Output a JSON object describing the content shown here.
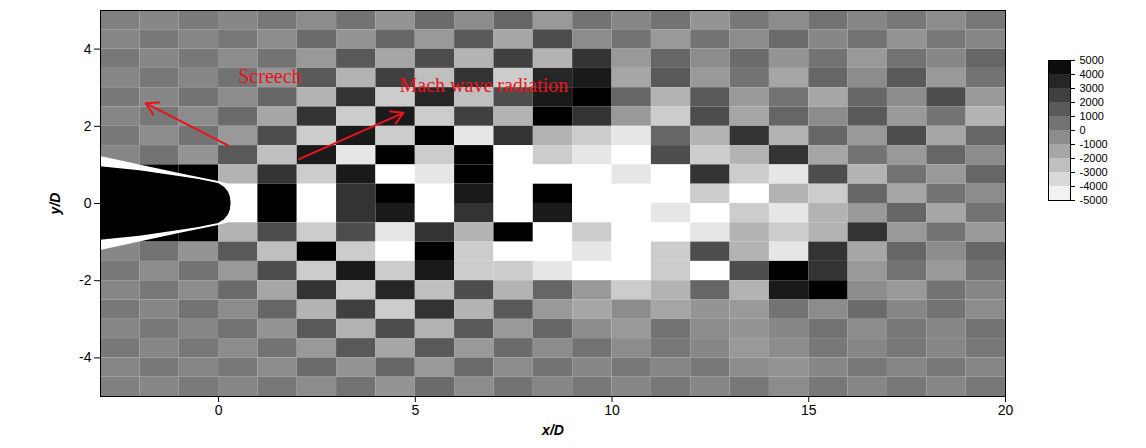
{
  "chart_data": {
    "type": "heatmap",
    "xlabel": "x/D",
    "ylabel": "y/D",
    "xlim": [
      -3,
      20
    ],
    "ylim": [
      -5,
      5
    ],
    "xticks": [
      0,
      5,
      10,
      15,
      20
    ],
    "yticks": [
      -4,
      -2,
      0,
      2,
      4
    ],
    "x": [
      -2.5,
      -1.5,
      -0.5,
      0.5,
      1.5,
      2.5,
      3.5,
      4.5,
      5.5,
      6.5,
      7.5,
      8.5,
      9.5,
      10.5,
      11.5,
      12.5,
      13.5,
      14.5,
      15.5,
      16.5,
      17.5,
      18.5,
      19.5
    ],
    "y": [
      4.75,
      4.25,
      3.75,
      3.25,
      2.75,
      2.25,
      1.75,
      1.25,
      0.75,
      0.25,
      -0.25,
      -0.75,
      -1.25,
      -1.75,
      -2.25,
      -2.75,
      -3.25,
      -3.75,
      -4.25,
      -4.75
    ],
    "z": [
      [
        0,
        -300,
        200,
        -300,
        300,
        -500,
        500,
        -800,
        800,
        -500,
        1000,
        -1000,
        500,
        -300,
        500,
        -800,
        300,
        -500,
        500,
        -300,
        300,
        -500,
        300
      ],
      [
        -300,
        300,
        -300,
        300,
        -500,
        800,
        -800,
        1000,
        -1000,
        1500,
        -1500,
        2000,
        -500,
        500,
        -1000,
        500,
        -500,
        800,
        -300,
        500,
        -800,
        300,
        -300
      ],
      [
        300,
        -300,
        300,
        -500,
        500,
        -1000,
        1500,
        -1500,
        2000,
        -2000,
        2500,
        -2000,
        3000,
        -1000,
        1000,
        -500,
        800,
        -800,
        500,
        -1000,
        500,
        -300,
        1000
      ],
      [
        -300,
        300,
        -300,
        500,
        -800,
        1500,
        -2000,
        2500,
        -2500,
        3000,
        -3000,
        3500,
        4000,
        -1500,
        1500,
        -1000,
        500,
        -1500,
        1000,
        -500,
        1500,
        -1000,
        500
      ],
      [
        300,
        -300,
        500,
        -500,
        1000,
        -2000,
        3000,
        -3000,
        3500,
        -2500,
        2000,
        4000,
        5000,
        1000,
        -2000,
        1500,
        -1000,
        500,
        -1500,
        1000,
        -500,
        2000,
        -1000
      ],
      [
        -300,
        300,
        -500,
        800,
        -1500,
        3000,
        -3000,
        4000,
        -3000,
        2500,
        -2000,
        5000,
        3000,
        -1000,
        -3000,
        2000,
        -1500,
        1000,
        -500,
        1500,
        -1000,
        500,
        -2000
      ],
      [
        300,
        -500,
        500,
        -1000,
        2000,
        -3000,
        4000,
        -3000,
        5000,
        -4000,
        3000,
        -2000,
        -3000,
        -4000,
        1000,
        -2000,
        3000,
        -2000,
        1000,
        -1000,
        2000,
        -1500,
        1000
      ],
      [
        -300,
        500,
        -800,
        1500,
        -2500,
        4000,
        -4000,
        5000,
        -3000,
        5000,
        -5000,
        -3000,
        -4000,
        -5000,
        2000,
        -3000,
        -2000,
        3000,
        -1500,
        500,
        -1000,
        1000,
        -500
      ],
      [
        5000,
        5000,
        5000,
        -2000,
        3000,
        -3000,
        4000,
        -5000,
        -4000,
        5000,
        -5000,
        -5000,
        -5000,
        -4000,
        -5000,
        3000,
        -3000,
        -4000,
        2000,
        -2000,
        500,
        -1000,
        1000
      ],
      [
        5000,
        5000,
        5000,
        -5000,
        5000,
        -5000,
        3000,
        5000,
        -5000,
        4000,
        -5000,
        5000,
        -5000,
        -5000,
        -5000,
        -3000,
        -5000,
        -2000,
        -3000,
        1000,
        -1500,
        500,
        -500
      ],
      [
        5000,
        5000,
        5000,
        -5000,
        5000,
        -5000,
        3000,
        4000,
        -5000,
        3000,
        -5000,
        4000,
        -5000,
        -5000,
        -4000,
        -5000,
        -3000,
        -4000,
        -2000,
        -1000,
        1000,
        -1500,
        500
      ],
      [
        5000,
        5000,
        5000,
        -2000,
        2000,
        -3000,
        2000,
        -4000,
        3000,
        -2000,
        5000,
        -5000,
        -3000,
        -5000,
        -5000,
        -4000,
        -2000,
        -3000,
        -2000,
        3000,
        -1000,
        500,
        -1000
      ],
      [
        -300,
        500,
        -800,
        1500,
        -2500,
        5000,
        -3000,
        -5000,
        5000,
        -3000,
        -5000,
        -5000,
        -4000,
        -5000,
        -3000,
        2000,
        -2000,
        -4000,
        3000,
        -1500,
        1000,
        -500,
        1000
      ],
      [
        300,
        -500,
        500,
        -1000,
        2000,
        -3000,
        4000,
        -3000,
        4000,
        -3000,
        -3000,
        -4000,
        -5000,
        -5000,
        -3000,
        -5000,
        2000,
        5000,
        3000,
        -1000,
        500,
        -1000,
        500
      ],
      [
        -300,
        300,
        -500,
        800,
        -1500,
        3000,
        -3000,
        3500,
        -2500,
        2000,
        -2000,
        1000,
        -1000,
        -3000,
        -2000,
        1000,
        -2000,
        4000,
        5000,
        -500,
        -1000,
        500,
        -300
      ],
      [
        300,
        -300,
        500,
        -500,
        1000,
        -2000,
        2500,
        -3000,
        3000,
        -2000,
        1500,
        -1000,
        -1500,
        -500,
        -1500,
        -800,
        -1000,
        500,
        -500,
        800,
        -300,
        500,
        -500
      ],
      [
        -300,
        300,
        -300,
        500,
        -800,
        1500,
        -2000,
        2000,
        -2000,
        1500,
        -1000,
        1000,
        -500,
        -1000,
        500,
        -500,
        -800,
        -300,
        500,
        -500,
        300,
        -300,
        500
      ],
      [
        300,
        -300,
        300,
        -500,
        500,
        -1000,
        1500,
        -1500,
        1500,
        -1000,
        800,
        -500,
        500,
        -500,
        300,
        -300,
        -1000,
        -500,
        300,
        -300,
        300,
        -300,
        300
      ],
      [
        -300,
        300,
        -300,
        300,
        -500,
        800,
        -800,
        1000,
        -1000,
        800,
        -500,
        500,
        -300,
        300,
        -300,
        300,
        -500,
        -800,
        -300,
        300,
        -300,
        300,
        -300
      ],
      [
        0,
        -300,
        200,
        -300,
        300,
        -500,
        500,
        -800,
        800,
        -500,
        500,
        -300,
        300,
        -300,
        300,
        -300,
        300,
        -500,
        300,
        -300,
        300,
        -300,
        300
      ]
    ],
    "colorbar": {
      "range": [
        -5000,
        5000
      ],
      "ticks": [
        5000,
        4000,
        3000,
        2000,
        1000,
        0,
        -1000,
        -2000,
        -3000,
        -4000,
        -5000
      ]
    },
    "nozzle": {
      "outer": {
        "color": "#ffffff",
        "x": [
          -3,
          -2,
          -1,
          0,
          0.25
        ],
        "y_top": [
          1.22,
          1.0,
          0.78,
          0.57,
          0.5
        ],
        "y_bottom": [
          -1.22,
          -1.0,
          -0.78,
          -0.57,
          -0.5
        ]
      },
      "inner": {
        "color": "#000000",
        "x": [
          -3,
          -2,
          -1,
          -0.5,
          0,
          0.15,
          0.25,
          0.3,
          0.32
        ],
        "y_top": [
          0.95,
          0.85,
          0.7,
          0.62,
          0.52,
          0.42,
          0.3,
          0.17,
          0
        ],
        "y_bottom": [
          -0.95,
          -0.85,
          -0.7,
          -0.62,
          -0.52,
          -0.42,
          -0.3,
          -0.17,
          0
        ]
      }
    },
    "annotations": [
      {
        "text": "Screech",
        "color": "#e8141c",
        "x": 0.5,
        "y": 3.3,
        "arrow": [
          0.25,
          1.5,
          -1.85,
          2.6
        ]
      },
      {
        "text": "Mach wave radiation",
        "color": "#e8141c",
        "x": 4.6,
        "y": 3.05,
        "arrow": [
          2.05,
          1.15,
          4.7,
          2.35
        ]
      }
    ]
  }
}
